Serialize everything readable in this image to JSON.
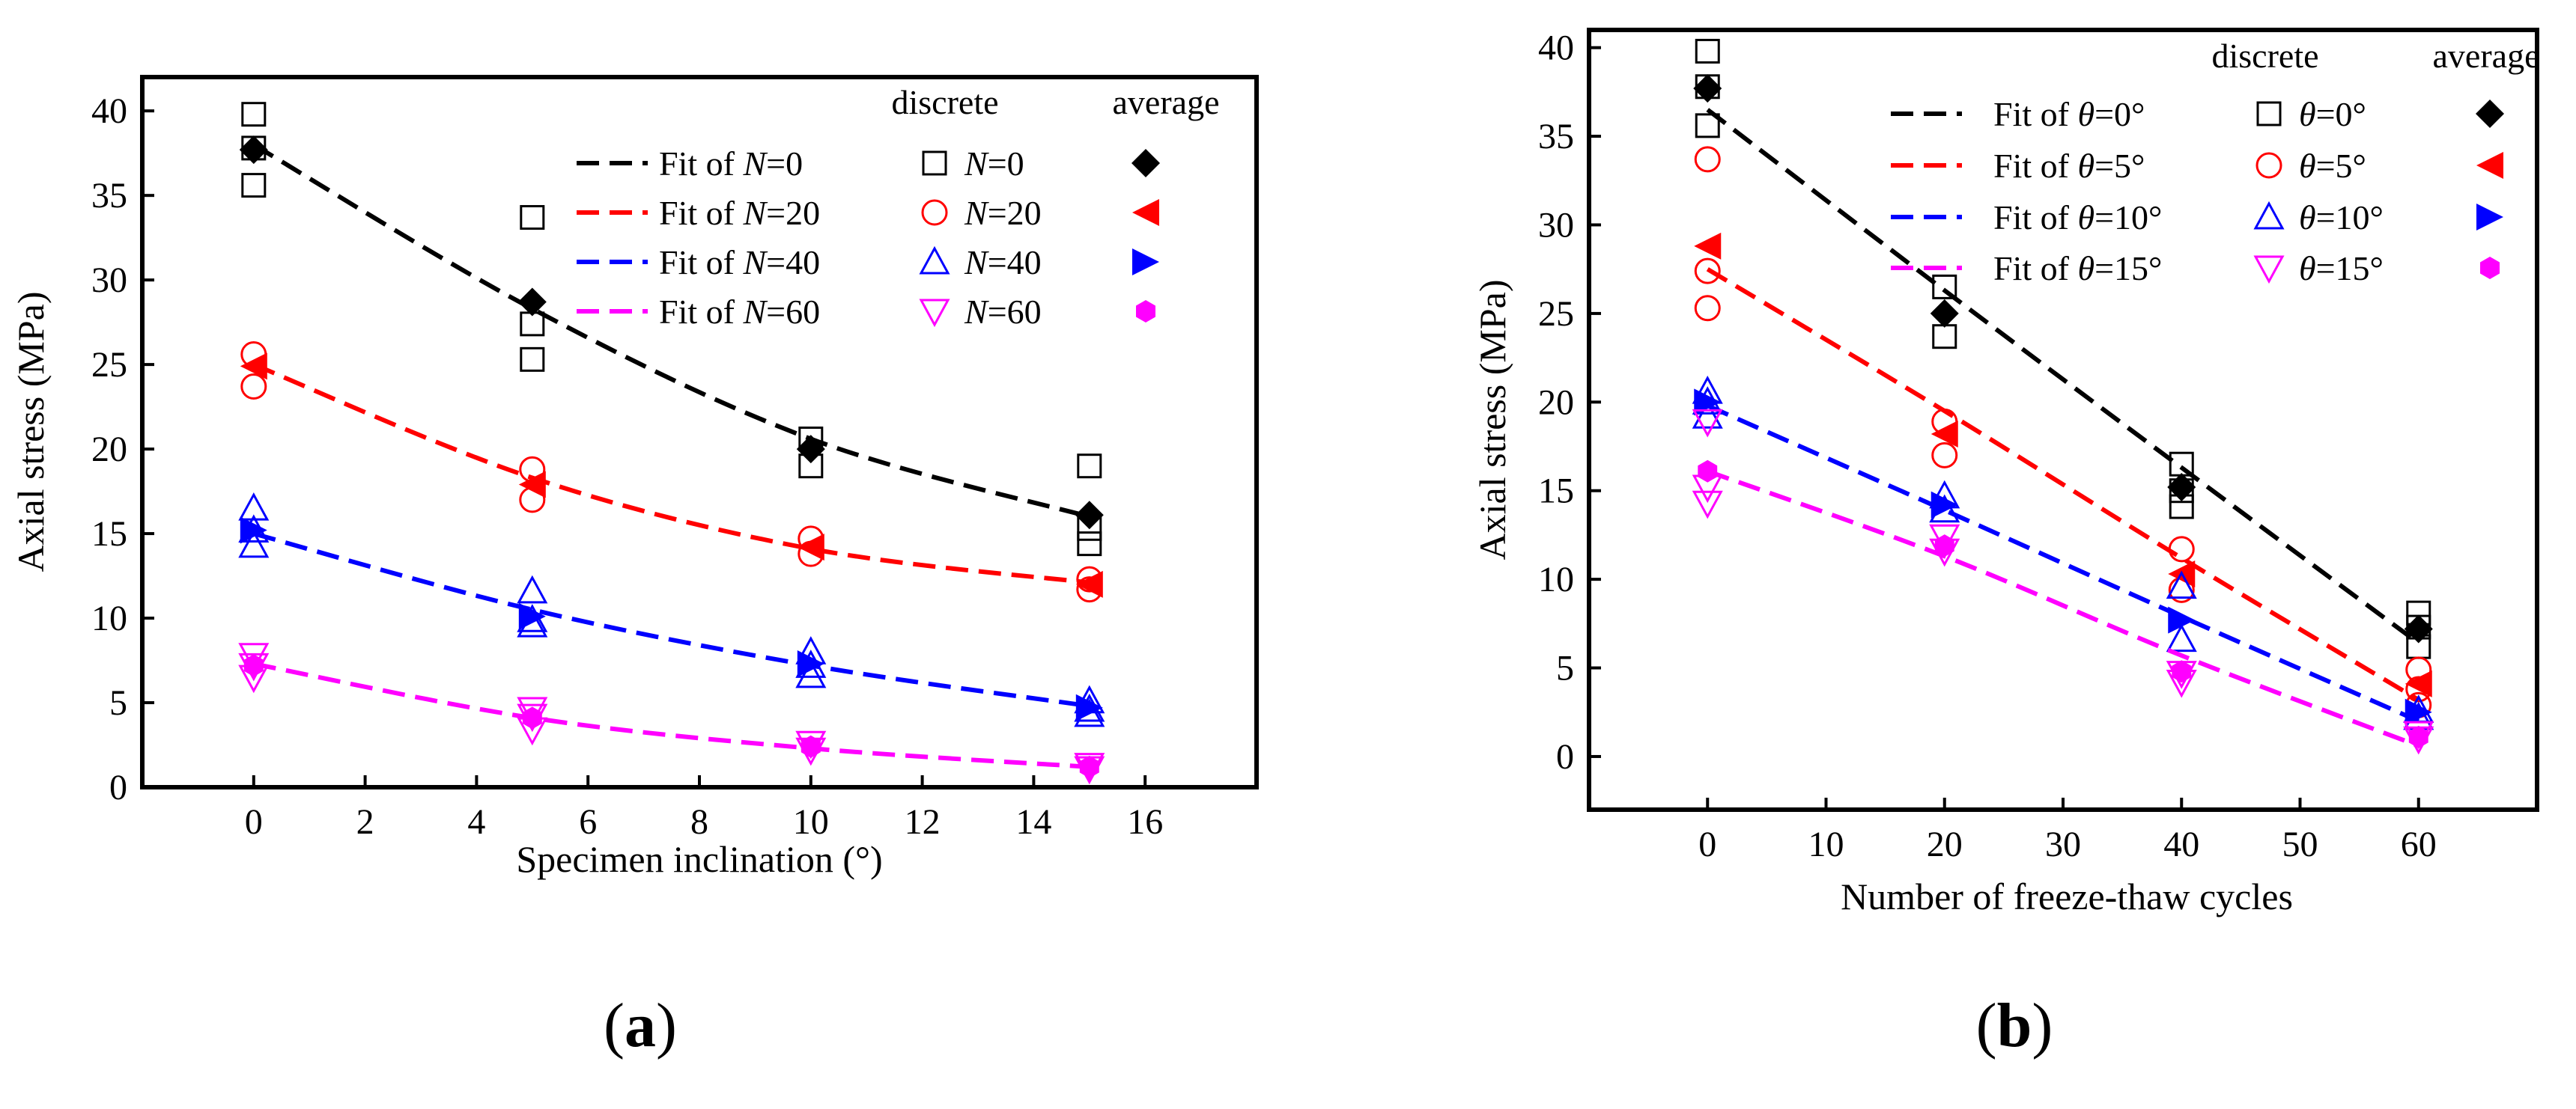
{
  "chart_data": [
    {
      "type": "scatter",
      "panel_label": "(a)",
      "panel_label_letter": "a",
      "xlabel": "Specimen inclination (°)",
      "ylabel": "Axial stress (MPa)",
      "xlim": [
        -2,
        18
      ],
      "ylim": [
        0,
        42
      ],
      "xticks": [
        0,
        2,
        4,
        6,
        8,
        10,
        12,
        14,
        16
      ],
      "yticks": [
        0,
        5,
        10,
        15,
        20,
        25,
        30,
        35,
        40
      ],
      "legend_headers": {
        "discrete": "discrete",
        "average": "average"
      },
      "legend_position": "top-right",
      "series": [
        {
          "name": "N=0",
          "var": "N",
          "val": "0",
          "color": "#000000",
          "discrete_marker": "square",
          "average_marker": "diamond",
          "fit_label": "Fit of ",
          "fit": [
            [
              0,
              38.0
            ],
            [
              5,
              28.3
            ],
            [
              10,
              20.6
            ],
            [
              15,
              16.0
            ]
          ],
          "discrete": [
            [
              0,
              39.8
            ],
            [
              0,
              37.8
            ],
            [
              0,
              35.6
            ],
            [
              5,
              33.7
            ],
            [
              5,
              27.4
            ],
            [
              5,
              25.3
            ],
            [
              10,
              20.6
            ],
            [
              10,
              19.0
            ],
            [
              15,
              19.0
            ],
            [
              15,
              15.3
            ],
            [
              15,
              14.4
            ]
          ],
          "average": [
            [
              0,
              37.7
            ],
            [
              5,
              28.7
            ],
            [
              10,
              20.0
            ],
            [
              15,
              16.1
            ]
          ]
        },
        {
          "name": "N=20",
          "var": "N",
          "val": "20",
          "color": "#ff0000",
          "discrete_marker": "circle",
          "average_marker": "triangle-left",
          "fit_label": "Fit of ",
          "fit": [
            [
              0,
              25.0
            ],
            [
              5,
              18.3
            ],
            [
              10,
              14.1
            ],
            [
              15,
              12.1
            ]
          ],
          "discrete": [
            [
              0,
              25.6
            ],
            [
              0,
              23.7
            ],
            [
              5,
              18.8
            ],
            [
              5,
              17.0
            ],
            [
              10,
              14.7
            ],
            [
              10,
              13.8
            ],
            [
              15,
              12.3
            ],
            [
              15,
              11.7
            ]
          ],
          "average": [
            [
              0,
              24.9
            ],
            [
              5,
              17.9
            ],
            [
              10,
              14.2
            ],
            [
              15,
              12.0
            ]
          ]
        },
        {
          "name": "N=40",
          "var": "N",
          "val": "40",
          "color": "#0000ff",
          "discrete_marker": "triangle-up",
          "average_marker": "triangle-right",
          "fit_label": "Fit of ",
          "fit": [
            [
              0,
              15.0
            ],
            [
              5,
              10.5
            ],
            [
              10,
              7.2
            ],
            [
              15,
              4.8
            ]
          ],
          "discrete": [
            [
              0,
              16.5
            ],
            [
              0,
              15.2
            ],
            [
              0,
              14.3
            ],
            [
              5,
              11.6
            ],
            [
              5,
              9.9
            ],
            [
              5,
              9.6
            ],
            [
              10,
              8.0
            ],
            [
              10,
              7.2
            ],
            [
              10,
              6.6
            ],
            [
              15,
              5.1
            ],
            [
              15,
              4.6
            ],
            [
              15,
              4.3
            ]
          ],
          "average": [
            [
              0,
              15.2
            ],
            [
              5,
              10.1
            ],
            [
              10,
              7.3
            ],
            [
              15,
              4.7
            ]
          ]
        },
        {
          "name": "N=60",
          "var": "N",
          "val": "60",
          "color": "#ff00ff",
          "discrete_marker": "triangle-down",
          "average_marker": "hexagon",
          "fit_label": "Fit of ",
          "fit": [
            [
              0,
              7.3
            ],
            [
              5,
              4.1
            ],
            [
              10,
              2.3
            ],
            [
              15,
              1.2
            ]
          ],
          "discrete": [
            [
              0,
              7.8
            ],
            [
              0,
              7.2
            ],
            [
              0,
              6.5
            ],
            [
              5,
              4.6
            ],
            [
              5,
              4.2
            ],
            [
              5,
              3.4
            ],
            [
              10,
              2.6
            ],
            [
              10,
              2.2
            ],
            [
              15,
              1.3
            ],
            [
              15,
              1.1
            ]
          ],
          "average": [
            [
              0,
              7.2
            ],
            [
              5,
              4.1
            ],
            [
              10,
              2.4
            ],
            [
              15,
              1.2
            ]
          ]
        }
      ]
    },
    {
      "type": "scatter",
      "panel_label": "(b)",
      "panel_label_letter": "b",
      "xlabel": "Number of freeze-thaw cycles",
      "ylabel": "Axial stress (MPa)",
      "xlim": [
        -10,
        70
      ],
      "ylim": [
        -3,
        41
      ],
      "xticks": [
        0,
        10,
        20,
        30,
        40,
        50,
        60
      ],
      "yticks": [
        0,
        5,
        10,
        15,
        20,
        25,
        30,
        35,
        40
      ],
      "legend_headers": {
        "discrete": "discrete",
        "average": "average"
      },
      "legend_position": "top-right",
      "series": [
        {
          "name": "θ=0°",
          "var": "θ",
          "val": "0°",
          "color": "#000000",
          "discrete_marker": "square",
          "average_marker": "diamond",
          "fit_label": "Fit of ",
          "fit": [
            [
              0,
              36.5
            ],
            [
              20,
              26.3
            ],
            [
              40,
              16.3
            ],
            [
              60,
              6.4
            ]
          ],
          "discrete": [
            [
              0,
              39.8
            ],
            [
              0,
              37.8
            ],
            [
              0,
              35.6
            ],
            [
              20,
              26.5
            ],
            [
              20,
              23.7
            ],
            [
              40,
              16.5
            ],
            [
              40,
              15.0
            ],
            [
              40,
              14.1
            ],
            [
              60,
              8.1
            ],
            [
              60,
              7.3
            ],
            [
              60,
              6.2
            ]
          ],
          "average": [
            [
              0,
              37.7
            ],
            [
              20,
              25.0
            ],
            [
              40,
              15.2
            ],
            [
              60,
              7.2
            ]
          ]
        },
        {
          "name": "θ=5°",
          "var": "θ",
          "val": "5°",
          "color": "#ff0000",
          "discrete_marker": "circle",
          "average_marker": "triangle-left",
          "fit_label": "Fit of ",
          "fit": [
            [
              0,
              27.5
            ],
            [
              20,
              19.5
            ],
            [
              40,
              11.2
            ],
            [
              60,
              3.2
            ]
          ],
          "discrete": [
            [
              0,
              33.7
            ],
            [
              0,
              27.4
            ],
            [
              0,
              25.3
            ],
            [
              20,
              18.9
            ],
            [
              20,
              17.0
            ],
            [
              40,
              11.7
            ],
            [
              40,
              9.4
            ],
            [
              60,
              4.9
            ],
            [
              60,
              3.8
            ],
            [
              60,
              2.9
            ]
          ],
          "average": [
            [
              0,
              28.8
            ],
            [
              20,
              18.2
            ],
            [
              40,
              10.3
            ],
            [
              60,
              4.1
            ]
          ]
        },
        {
          "name": "θ=10°",
          "var": "θ",
          "val": "10°",
          "color": "#0000ff",
          "discrete_marker": "triangle-up",
          "average_marker": "triangle-right",
          "fit_label": "Fit of ",
          "fit": [
            [
              0,
              19.8
            ],
            [
              20,
              13.9
            ],
            [
              40,
              7.9
            ],
            [
              60,
              2.0
            ]
          ],
          "discrete": [
            [
              0,
              20.6
            ],
            [
              0,
              20.0
            ],
            [
              0,
              19.2
            ],
            [
              20,
              14.7
            ],
            [
              20,
              13.9
            ],
            [
              40,
              9.6
            ],
            [
              40,
              6.6
            ],
            [
              60,
              2.6
            ],
            [
              60,
              2.2
            ]
          ],
          "average": [
            [
              0,
              20.0
            ],
            [
              20,
              14.2
            ],
            [
              40,
              7.7
            ],
            [
              60,
              2.5
            ]
          ]
        },
        {
          "name": "θ=15°",
          "var": "θ",
          "val": "15°",
          "color": "#ff00ff",
          "discrete_marker": "triangle-down",
          "average_marker": "hexagon",
          "fit_label": "Fit of ",
          "fit": [
            [
              0,
              16.1
            ],
            [
              20,
              11.3
            ],
            [
              40,
              5.7
            ],
            [
              60,
              0.6
            ]
          ],
          "discrete": [
            [
              0,
              18.9
            ],
            [
              0,
              15.2
            ],
            [
              0,
              14.3
            ],
            [
              20,
              12.4
            ],
            [
              20,
              11.6
            ],
            [
              40,
              4.7
            ],
            [
              40,
              4.2
            ],
            [
              60,
              1.3
            ],
            [
              60,
              1.0
            ]
          ],
          "average": [
            [
              0,
              16.1
            ],
            [
              20,
              11.9
            ],
            [
              40,
              4.8
            ],
            [
              60,
              1.1
            ]
          ]
        }
      ]
    }
  ]
}
